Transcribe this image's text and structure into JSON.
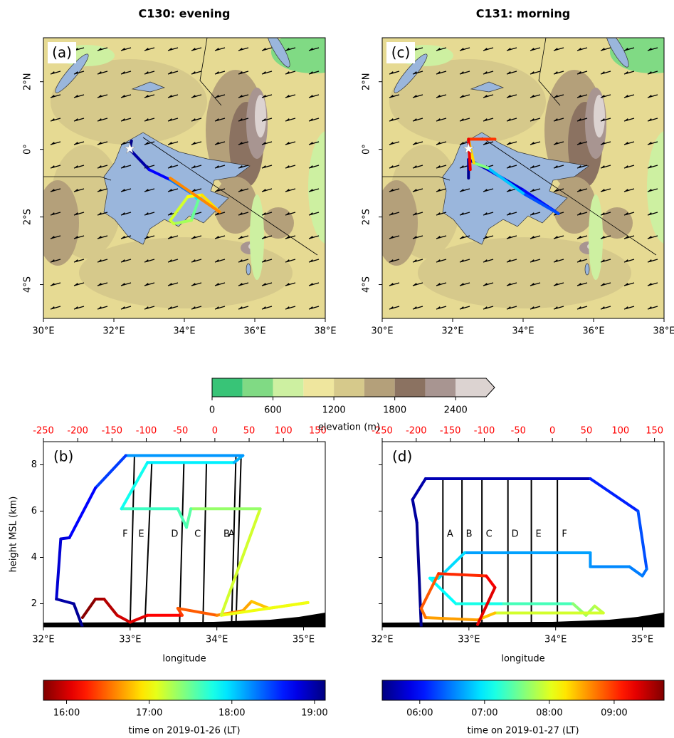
{
  "chart_data": [
    {
      "type": "flight",
      "title": "C130: evening",
      "map": {
        "label": "(a)",
        "xlim": [
          30,
          38
        ],
        "ylim": [
          -5,
          3.3
        ],
        "xticks": [
          {
            "value": 30,
            "label": "30°E"
          },
          {
            "value": 32,
            "label": "32°E"
          },
          {
            "value": 34,
            "label": "34°E"
          },
          {
            "value": 36,
            "label": "36°E"
          },
          {
            "value": 38,
            "label": "38°E"
          }
        ],
        "yticks": [
          {
            "value": 2,
            "label": "2°N"
          },
          {
            "value": 0,
            "label": "0°"
          },
          {
            "value": -2,
            "label": "2°S"
          },
          {
            "value": -4,
            "label": "4°S"
          }
        ],
        "site": {
          "x": 32.45,
          "y": 0.02
        },
        "track": {
          "x": [
            32.5,
            32.45,
            33.0,
            33.6,
            34.2,
            34.4,
            34.2,
            33.7,
            33.6,
            34.1,
            34.5,
            35.0,
            33.6
          ],
          "y": [
            0.25,
            0.0,
            -0.6,
            -0.9,
            -1.3,
            -1.5,
            -2.1,
            -2.2,
            -2.1,
            -1.4,
            -1.35,
            -1.85,
            -0.85
          ],
          "time": [
            19.1,
            19.0,
            18.7,
            18.3,
            17.9,
            17.5,
            17.3,
            17.2,
            17.15,
            17.0,
            16.9,
            16.6,
            15.9
          ]
        }
      },
      "section": {
        "label": "(b)",
        "xlabel": "longitude",
        "ylabel": "height MSL (km)",
        "ytick_labels": true,
        "xlim": [
          32,
          35.25
        ],
        "ylim": [
          1,
          9
        ],
        "x2lim": [
          -250,
          161
        ],
        "xticks": [
          {
            "value": 32,
            "label": "32°E"
          },
          {
            "value": 33,
            "label": "33°E"
          },
          {
            "value": 34,
            "label": "34°E"
          },
          {
            "value": 35,
            "label": "35°E"
          }
        ],
        "yticks": [
          2,
          4,
          6,
          8
        ],
        "x2ticks": [
          -250,
          -200,
          -150,
          -100,
          -50,
          0,
          50,
          100,
          150
        ],
        "x2tick_color": "#ff0000",
        "sondes": [
          {
            "label": "F",
            "x": [
              33.05,
              33.0
            ],
            "y": [
              8.4,
              1.1
            ]
          },
          {
            "label": "E",
            "x": [
              33.25,
              33.17
            ],
            "y": [
              8.1,
              1.1
            ]
          },
          {
            "label": "D",
            "x": [
              33.62,
              33.57
            ],
            "y": [
              8.1,
              1.1
            ]
          },
          {
            "label": "C",
            "x": [
              33.88,
              33.84
            ],
            "y": [
              8.1,
              1.1
            ]
          },
          {
            "label": "B",
            "x": [
              34.22,
              34.17
            ],
            "y": [
              8.4,
              1.1
            ]
          },
          {
            "label": "A",
            "x": [
              34.28,
              34.22
            ],
            "y": [
              8.4,
              1.1
            ]
          }
        ],
        "track": {
          "x": [
            32.45,
            32.6,
            32.7,
            32.85,
            33.0,
            33.2,
            33.6,
            33.55,
            34.0,
            34.3,
            34.4,
            34.6,
            35.05,
            34.05,
            34.5,
            33.7,
            33.65,
            33.55,
            32.9,
            33.2,
            34.2,
            34.3,
            32.95,
            32.6,
            32.3,
            32.2,
            32.15,
            32.35,
            32.45
          ],
          "y": [
            1.4,
            2.2,
            2.2,
            1.5,
            1.2,
            1.5,
            1.5,
            1.8,
            1.5,
            1.7,
            2.1,
            1.8,
            2.05,
            1.5,
            6.1,
            6.1,
            5.3,
            6.1,
            6.1,
            8.1,
            8.1,
            8.4,
            8.4,
            7.0,
            4.85,
            4.8,
            2.2,
            2.0,
            1.0
          ],
          "time": [
            15.75,
            15.85,
            15.9,
            16.0,
            16.05,
            16.15,
            16.35,
            16.45,
            16.6,
            16.7,
            16.8,
            16.9,
            17.05,
            17.15,
            17.35,
            17.55,
            17.6,
            17.65,
            17.8,
            17.9,
            18.1,
            18.2,
            18.5,
            18.7,
            18.8,
            18.85,
            19.0,
            19.05,
            19.1
          ]
        }
      },
      "time_colorbar": {
        "label": "time on 2019-01-26 (LT)",
        "lim": [
          15.72,
          19.13
        ],
        "colormap": "jet_r",
        "ticks": [
          {
            "value": 16,
            "label": "16:00"
          },
          {
            "value": 17,
            "label": "17:00"
          },
          {
            "value": 18,
            "label": "18:00"
          },
          {
            "value": 19,
            "label": "19:00"
          }
        ]
      }
    },
    {
      "type": "flight",
      "title": "C131: morning",
      "map": {
        "label": "(c)",
        "xlim": [
          30,
          38
        ],
        "ylim": [
          -5,
          3.3
        ],
        "xticks": [
          {
            "value": 30,
            "label": "30°E"
          },
          {
            "value": 32,
            "label": "32°E"
          },
          {
            "value": 34,
            "label": "34°E"
          },
          {
            "value": 36,
            "label": "36°E"
          },
          {
            "value": 38,
            "label": "38°E"
          }
        ],
        "yticks": [
          {
            "value": 2,
            "label": "2°N"
          },
          {
            "value": 0,
            "label": "0°"
          },
          {
            "value": -2,
            "label": "2°S"
          },
          {
            "value": -4,
            "label": "4°S"
          }
        ],
        "site": {
          "x": 32.45,
          "y": 0.02
        },
        "track": {
          "x": [
            32.45,
            32.45,
            33.0,
            34.0,
            35.0,
            34.0,
            33.0,
            32.6,
            32.45,
            33.2,
            32.45,
            32.5
          ],
          "y": [
            -0.85,
            -0.3,
            -0.6,
            -1.2,
            -1.9,
            -1.3,
            -0.55,
            -0.4,
            0.3,
            0.3,
            0.3,
            -0.6
          ],
          "time": [
            5.5,
            5.6,
            5.8,
            6.0,
            6.3,
            6.8,
            7.6,
            8.3,
            8.8,
            9.0,
            9.3,
            9.5
          ]
        }
      },
      "section": {
        "label": "(d)",
        "xlabel": "longitude",
        "ytick_labels": false,
        "xlim": [
          32,
          35.25
        ],
        "ylim": [
          1,
          9
        ],
        "x2lim": [
          -250,
          164
        ],
        "xticks": [
          {
            "value": 32,
            "label": "32°E"
          },
          {
            "value": 33,
            "label": "33°E"
          },
          {
            "value": 34,
            "label": "34°E"
          },
          {
            "value": 35,
            "label": "35°E"
          }
        ],
        "yticks": [
          2,
          4,
          6,
          8
        ],
        "x2ticks": [
          -250,
          -200,
          -150,
          -100,
          -50,
          0,
          50,
          100,
          150
        ],
        "x2tick_color": "#ff0000",
        "sondes": [
          {
            "label": "A",
            "x": [
              32.7,
              32.7
            ],
            "y": [
              7.4,
              1.1
            ]
          },
          {
            "label": "B",
            "x": [
              32.92,
              32.92
            ],
            "y": [
              7.4,
              1.1
            ]
          },
          {
            "label": "C",
            "x": [
              33.15,
              33.15
            ],
            "y": [
              7.4,
              1.1
            ]
          },
          {
            "label": "D",
            "x": [
              33.45,
              33.45
            ],
            "y": [
              7.4,
              1.1
            ]
          },
          {
            "label": "E",
            "x": [
              33.72,
              33.72
            ],
            "y": [
              7.4,
              1.1
            ]
          },
          {
            "label": "F",
            "x": [
              34.02,
              34.02
            ],
            "y": [
              7.4,
              1.1
            ]
          }
        ],
        "track": {
          "x": [
            32.45,
            32.4,
            32.35,
            32.5,
            34.4,
            34.95,
            35.05,
            35.0,
            34.85,
            34.4,
            34.4,
            32.95,
            32.65,
            32.55,
            32.85,
            33.4,
            34.2,
            34.35,
            34.45,
            34.55,
            33.3,
            33.1,
            32.5,
            32.45,
            32.65,
            33.2,
            33.3,
            33.1
          ],
          "y": [
            1.0,
            5.5,
            6.5,
            7.4,
            7.4,
            6.0,
            3.5,
            3.2,
            3.6,
            3.6,
            4.2,
            4.2,
            3.1,
            3.1,
            2.0,
            2.0,
            2.0,
            1.5,
            1.9,
            1.6,
            1.6,
            1.3,
            1.4,
            1.8,
            3.3,
            3.2,
            2.7,
            1.1
          ],
          "time": [
            5.5,
            5.55,
            5.6,
            5.65,
            6.1,
            6.3,
            6.45,
            6.5,
            6.55,
            6.6,
            6.65,
            6.9,
            7.0,
            7.05,
            7.15,
            7.35,
            7.65,
            7.75,
            7.85,
            7.95,
            8.4,
            8.55,
            8.75,
            8.85,
            9.05,
            9.25,
            9.35,
            9.55
          ]
        }
      },
      "time_colorbar": {
        "label": "time on 2019-01-27 (LT)",
        "lim": [
          5.42,
          9.77
        ],
        "colormap": "jet",
        "ticks": [
          {
            "value": 6,
            "label": "06:00"
          },
          {
            "value": 7,
            "label": "07:00"
          },
          {
            "value": 8,
            "label": "08:00"
          },
          {
            "value": 9,
            "label": "09:00"
          }
        ]
      }
    },
    {
      "type": "colorbar",
      "label": "elevation (m)",
      "extend": "max",
      "bounds": [
        0,
        300,
        600,
        900,
        1200,
        1500,
        1800,
        2100,
        2400,
        2700
      ],
      "colors": [
        "#38c477",
        "#80da84",
        "#cdf0a1",
        "#efe69e",
        "#d6c98b",
        "#b4a07a",
        "#8b7261",
        "#a89591",
        "#dcd3d1"
      ],
      "ticks": [
        0,
        600,
        1200,
        1800,
        2400
      ]
    }
  ]
}
